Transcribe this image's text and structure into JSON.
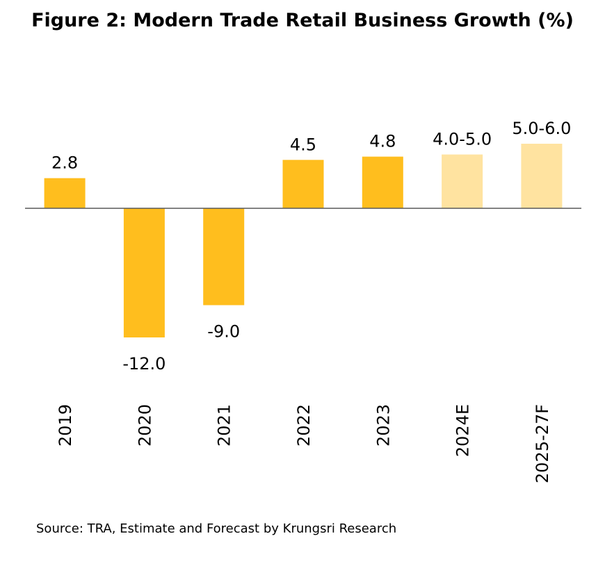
{
  "chart_data": {
    "type": "bar",
    "title": "Figure 2: Modern Trade Retail Business Growth (%)",
    "categories": [
      "2019",
      "2020",
      "2021",
      "2022",
      "2023",
      "2024E",
      "2025-27F"
    ],
    "values": [
      2.8,
      -12.0,
      -9.0,
      4.5,
      4.8,
      5.0,
      6.0
    ],
    "value_labels": [
      "2.8",
      "-12.0",
      "-9.0",
      "4.5",
      "4.8",
      "4.0-5.0",
      "5.0-6.0"
    ],
    "ranges": [
      null,
      null,
      null,
      null,
      null,
      [
        4.0,
        5.0
      ],
      [
        5.0,
        6.0
      ]
    ],
    "bar_types": [
      "actual",
      "actual",
      "actual",
      "actual",
      "actual",
      "estimate",
      "forecast"
    ],
    "ylim": [
      -14,
      7
    ],
    "xlabel": "",
    "ylabel": "",
    "grid": false,
    "colors": {
      "actual": "#FFBE1E",
      "estimate": "#FFE3A0",
      "forecast": "#FFE3A0",
      "axis": "#595959"
    }
  },
  "source": "Source: TRA, Estimate and Forecast by Krungsri Research"
}
